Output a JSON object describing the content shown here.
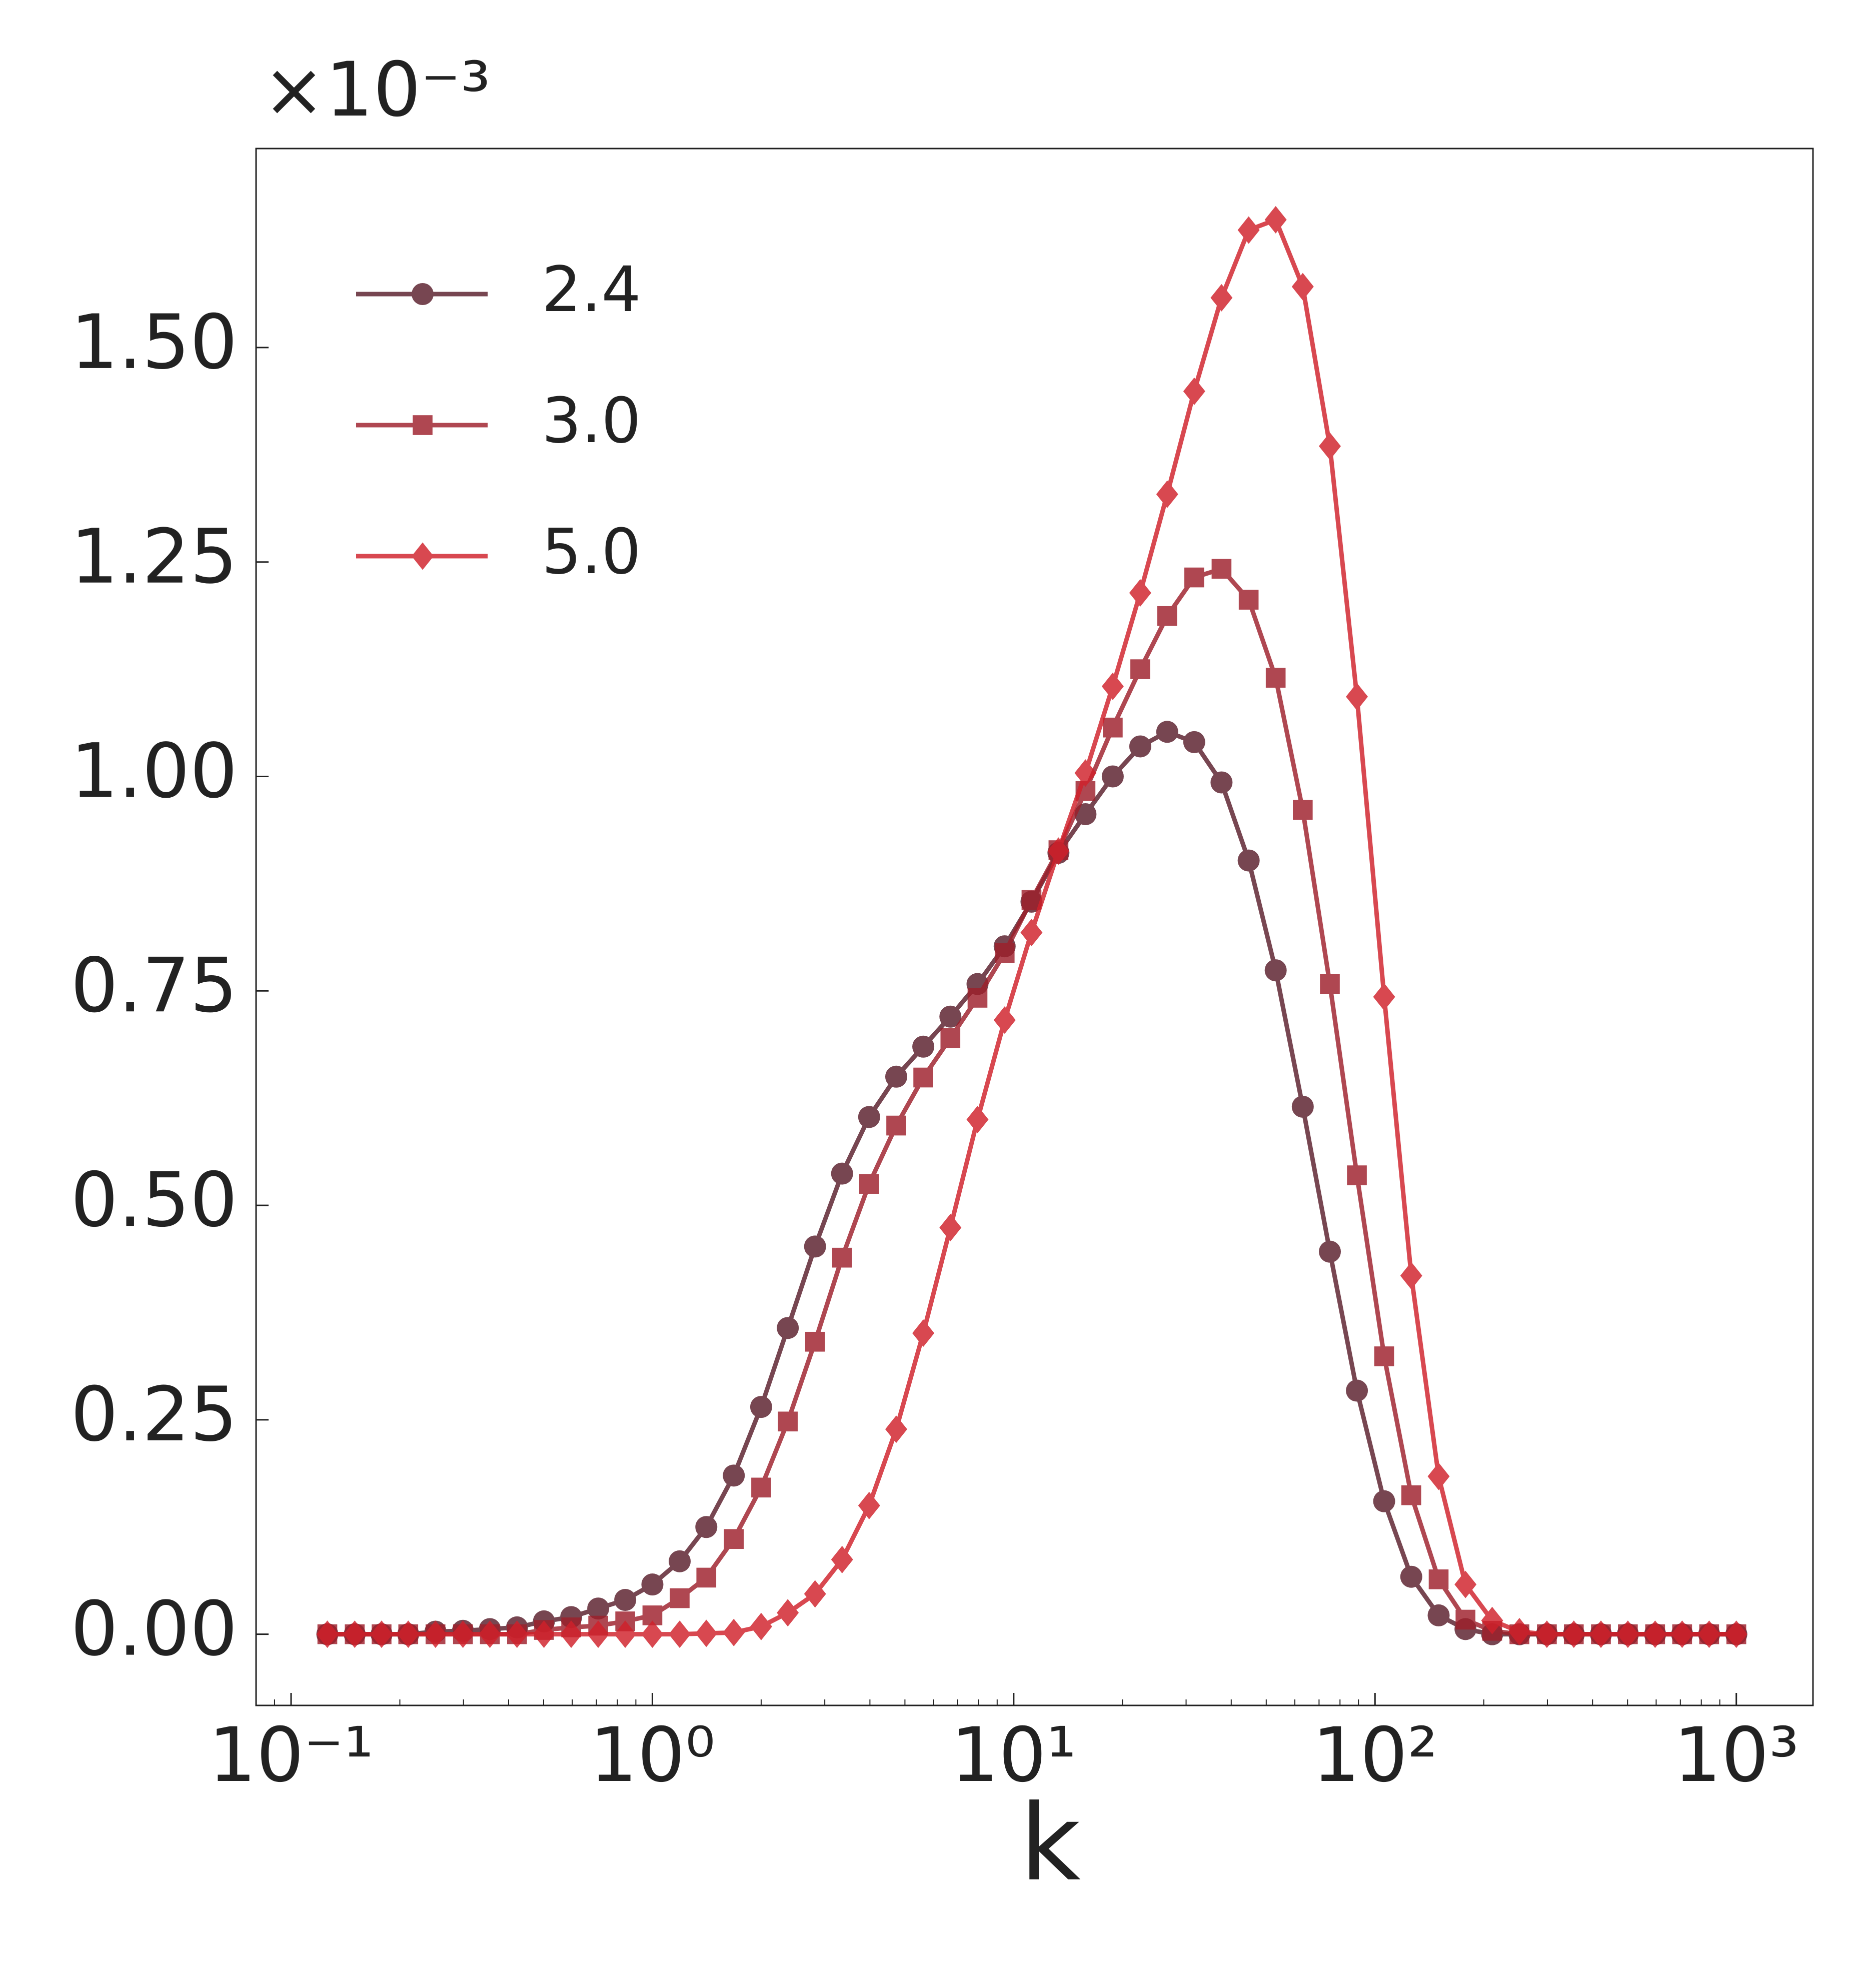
{
  "chart_data": {
    "type": "line",
    "xlabel": "k",
    "y_offset_label": "×10⁻³",
    "xscale": "log",
    "legend_loc": "upper left",
    "xlim": [
      0.08,
      1630
    ],
    "ylim": [
      -0.083,
      1.732
    ],
    "xticks": [
      {
        "value": 0.1,
        "label": "10⁻¹"
      },
      {
        "value": 1,
        "label": "10⁰"
      },
      {
        "value": 10,
        "label": "10¹"
      },
      {
        "value": 100,
        "label": "10²"
      },
      {
        "value": 1000,
        "label": "10³"
      }
    ],
    "yticks": [
      {
        "value": 0,
        "label": "0.00"
      },
      {
        "value": 0.25,
        "label": "0.25"
      },
      {
        "value": 0.5,
        "label": "0.50"
      },
      {
        "value": 0.75,
        "label": "0.75"
      },
      {
        "value": 1,
        "label": "1.00"
      },
      {
        "value": 1.25,
        "label": "1.25"
      },
      {
        "value": 1.5,
        "label": "1.50"
      }
    ],
    "x": [
      0.126,
      0.15,
      0.178,
      0.211,
      0.251,
      0.299,
      0.355,
      0.422,
      0.501,
      0.596,
      0.708,
      0.841,
      1.0,
      1.19,
      1.41,
      1.68,
      2.0,
      2.37,
      2.82,
      3.35,
      3.98,
      4.73,
      5.62,
      6.68,
      7.94,
      9.44,
      11.2,
      13.3,
      15.8,
      18.8,
      22.4,
      26.6,
      31.6,
      37.6,
      44.7,
      53.1,
      63.1,
      75.0,
      89.1,
      106,
      126,
      150,
      178,
      211,
      251,
      299,
      355,
      422,
      501,
      596,
      708,
      841,
      1000
    ],
    "series": [
      {
        "name": "2.4",
        "color": "#5a1e2c",
        "marker": "circle",
        "values": [
          0,
          0,
          0,
          0,
          0.003,
          0.004,
          0.006,
          0.008,
          0.015,
          0.02,
          0.03,
          0.04,
          0.058,
          0.085,
          0.125,
          0.185,
          0.265,
          0.357,
          0.452,
          0.537,
          0.603,
          0.65,
          0.685,
          0.72,
          0.758,
          0.802,
          0.854,
          0.911,
          0.956,
          1.0,
          1.035,
          1.052,
          1.04,
          0.993,
          0.902,
          0.774,
          0.615,
          0.446,
          0.284,
          0.155,
          0.067,
          0.022,
          0.006,
          0,
          0,
          0,
          0,
          0,
          0,
          0,
          0,
          0,
          0
        ]
      },
      {
        "name": "3.0",
        "color": "#9e1f2b",
        "marker": "square",
        "values": [
          0,
          0,
          0,
          0,
          0,
          0,
          0,
          0,
          0.005,
          0.008,
          0.01,
          0.015,
          0.022,
          0.042,
          0.066,
          0.111,
          0.171,
          0.248,
          0.341,
          0.439,
          0.525,
          0.593,
          0.649,
          0.695,
          0.742,
          0.794,
          0.856,
          0.914,
          0.983,
          1.057,
          1.125,
          1.187,
          1.232,
          1.242,
          1.206,
          1.115,
          0.961,
          0.758,
          0.535,
          0.324,
          0.162,
          0.064,
          0.017,
          0.004,
          0,
          0,
          0,
          0,
          0,
          0,
          0,
          0,
          0
        ]
      },
      {
        "name": "5.0",
        "color": "#d0202a",
        "marker": "diamond",
        "values": [
          0,
          0,
          0,
          0,
          0,
          0,
          0,
          0,
          0,
          0,
          0,
          0,
          0,
          0,
          0.001,
          0.002,
          0.009,
          0.025,
          0.047,
          0.087,
          0.15,
          0.239,
          0.351,
          0.474,
          0.6,
          0.716,
          0.818,
          0.913,
          1.004,
          1.105,
          1.214,
          1.329,
          1.449,
          1.558,
          1.637,
          1.649,
          1.571,
          1.385,
          1.093,
          0.743,
          0.418,
          0.184,
          0.058,
          0.016,
          0.003,
          0,
          0,
          0,
          0,
          0,
          0,
          0,
          0
        ]
      }
    ]
  }
}
